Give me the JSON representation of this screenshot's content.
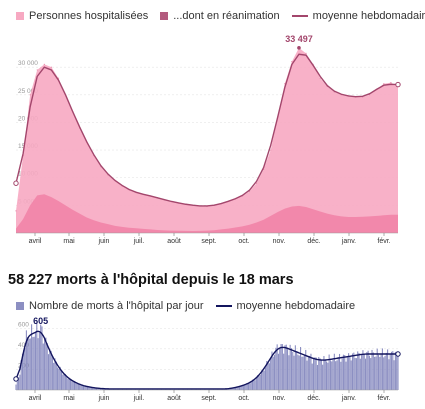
{
  "top_legend": {
    "hospitalises": "Personnes hospitalisées",
    "reanimation": "...dont en réanimation",
    "moyenne": "moyenne hebdomadaire",
    "colors": {
      "hospitalises": "#f7a9c2",
      "reanimation": "#b35b7e",
      "moyenne": "#a3466c"
    }
  },
  "headline": "58 227 morts à l'hôpital depuis le 18 mars",
  "bottom_legend": {
    "morts": "Nombre de morts à l'hôpital par jour",
    "moyenne": "moyenne hebdomadaire",
    "colors": {
      "morts": "#8c8fc2",
      "moyenne": "#13155e"
    }
  },
  "chart_data": [
    {
      "type": "area",
      "title": "",
      "x_ticks": [
        "avril",
        "mai",
        "juin",
        "juil.",
        "août",
        "sept.",
        "oct.",
        "nov.",
        "déc.",
        "janv.",
        "févr."
      ],
      "y_ticks": [
        "5 000",
        "10 000",
        "15 000",
        "20 000",
        "25 000",
        "30 000"
      ],
      "ylim": [
        0,
        36000
      ],
      "annotation": {
        "label": "33 497",
        "x_index": 40,
        "value": 33497
      },
      "x_step": "weekly, from mid-March",
      "series": [
        {
          "name": "Personnes hospitalisées",
          "values": [
            4000,
            14000,
            25000,
            29500,
            30500,
            30000,
            28000,
            25000,
            22000,
            19000,
            16500,
            14000,
            12000,
            10500,
            9500,
            8500,
            7800,
            7300,
            7000,
            6700,
            6400,
            6000,
            5700,
            5400,
            5200,
            5000,
            4900,
            4800,
            5000,
            5300,
            5700,
            6200,
            6700,
            7500,
            9000,
            11500,
            15000,
            21000,
            27000,
            31000,
            33497,
            32500,
            30500,
            28000,
            26500,
            25500,
            25000,
            24800,
            24600,
            24600,
            25000,
            26000,
            27000,
            27200,
            26500
          ]
        },
        {
          "name": "...dont en réanimation",
          "values": [
            800,
            2500,
            5000,
            6800,
            7000,
            6500,
            5800,
            5000,
            4200,
            3500,
            2800,
            2300,
            1900,
            1600,
            1300,
            1100,
            950,
            850,
            750,
            650,
            550,
            480,
            430,
            400,
            380,
            370,
            380,
            420,
            500,
            650,
            800,
            1000,
            1200,
            1500,
            1900,
            2400,
            3100,
            3800,
            4400,
            4800,
            4900,
            4700,
            4300,
            3900,
            3500,
            3200,
            3000,
            2900,
            2900,
            2950,
            3000,
            3100,
            3200,
            3300,
            3300
          ]
        }
      ]
    },
    {
      "type": "bar",
      "title": "58 227 morts à l'hôpital depuis le 18 mars",
      "x_ticks": [
        "avril",
        "mai",
        "juin",
        "juil.",
        "août",
        "sept.",
        "oct.",
        "nov.",
        "déc.",
        "janv.",
        "févr."
      ],
      "y_ticks": [
        "200",
        "400",
        "600"
      ],
      "ylim": [
        0,
        700
      ],
      "annotation": {
        "label": "605",
        "x_index": 19,
        "value": 605
      },
      "x_step": "daily, from mid-March",
      "series": [
        {
          "name": "Nombre de morts à l'hôpital par jour",
          "values": [
            50,
            80,
            120,
            180,
            260,
            340,
            400,
            470,
            500,
            520,
            530,
            540,
            545,
            550,
            555,
            560,
            565,
            570,
            580,
            605,
            560,
            530,
            500,
            470,
            440,
            410,
            380,
            350,
            330,
            300,
            280,
            260,
            240,
            220,
            200,
            185,
            170,
            155,
            140,
            130,
            120,
            110,
            100,
            92,
            85,
            78,
            72,
            66,
            60,
            55,
            50,
            46,
            42,
            38,
            35,
            32,
            30,
            28,
            26,
            24,
            22,
            20,
            18,
            17,
            16,
            15,
            14,
            13,
            12,
            12,
            11,
            11,
            10,
            10,
            10,
            10,
            10,
            10,
            10,
            10,
            10,
            10,
            10,
            10,
            10,
            10,
            10,
            10,
            10,
            10,
            10,
            10,
            10,
            10,
            10,
            10,
            10,
            10,
            10,
            10,
            10,
            10,
            10,
            10,
            10,
            10,
            10,
            10,
            10,
            10,
            10,
            10,
            10,
            10,
            10,
            10,
            10,
            10,
            10,
            10,
            10,
            10,
            10,
            10,
            10,
            10,
            10,
            10,
            10,
            10,
            10,
            10,
            10,
            10,
            10,
            10,
            10,
            10,
            10,
            10,
            10,
            10,
            10,
            10,
            10,
            10,
            10,
            10,
            10,
            10,
            10,
            10,
            10,
            10,
            10,
            10,
            10,
            10,
            10,
            10,
            10,
            10,
            10,
            12,
            14,
            16,
            18,
            20,
            22,
            25,
            28,
            31,
            34,
            38,
            42,
            46,
            50,
            55,
            60,
            66,
            72,
            80,
            88,
            96,
            106,
            118,
            130,
            145,
            160,
            175,
            190,
            210,
            230,
            250,
            270,
            290,
            310,
            330,
            350,
            370,
            390,
            400,
            405,
            410,
            415,
            420,
            420,
            415,
            410,
            405,
            400,
            395,
            390,
            385,
            380,
            375,
            370,
            365,
            360,
            355,
            350,
            345,
            340,
            335,
            330,
            325,
            320,
            315,
            310,
            305,
            300,
            298,
            296,
            294,
            292,
            290,
            290,
            290,
            290,
            292,
            294,
            296,
            298,
            300,
            302,
            304,
            306,
            308,
            310,
            312,
            314,
            316,
            318,
            320,
            322,
            324,
            326,
            328,
            330,
            332,
            334,
            336,
            338,
            340,
            342,
            344,
            346,
            348,
            350,
            350,
            350,
            350,
            350,
            350,
            350,
            350,
            350,
            350,
            350,
            350,
            350,
            350,
            350,
            350,
            350,
            350,
            350,
            350,
            350,
            350,
            350,
            350,
            350,
            350,
            350
          ]
        }
      ]
    }
  ]
}
